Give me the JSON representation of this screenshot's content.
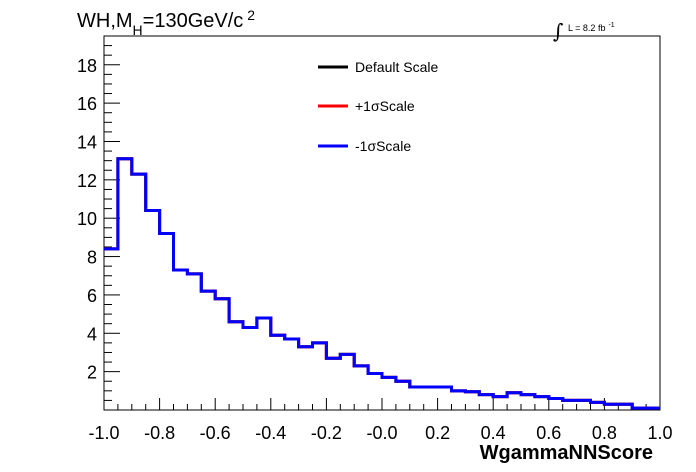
{
  "title": {
    "main": "WH,M",
    "sub": "H",
    "mass": "=130GeV/c",
    "sup": "2"
  },
  "lumi": {
    "integral": "∫",
    "text": "L = 8.2 fb",
    "sup": "-1"
  },
  "colors": {
    "default": "#000000",
    "plus": "#ff0000",
    "minus": "#0000ff"
  },
  "chart_data": {
    "type": "line",
    "xlabel": "WgammaNNScore",
    "ylabel": "",
    "xlim": [
      -1.0,
      1.0
    ],
    "ylim": [
      0,
      19.5
    ],
    "x_ticks": [
      "-1.0",
      "-0.8",
      "-0.6",
      "-0.4",
      "-0.2",
      "-0.0",
      "0.2",
      "0.4",
      "0.6",
      "0.8",
      "1.0"
    ],
    "y_ticks": [
      "2",
      "4",
      "6",
      "8",
      "10",
      "12",
      "14",
      "16",
      "18"
    ],
    "bin_edges": [
      -1.0,
      -0.95,
      -0.9,
      -0.85,
      -0.8,
      -0.75,
      -0.7,
      -0.65,
      -0.6,
      -0.55,
      -0.5,
      -0.45,
      -0.4,
      -0.35,
      -0.3,
      -0.25,
      -0.2,
      -0.15,
      -0.1,
      -0.05,
      0.0,
      0.05,
      0.1,
      0.15,
      0.2,
      0.25,
      0.3,
      0.35,
      0.4,
      0.45,
      0.5,
      0.55,
      0.6,
      0.65,
      0.7,
      0.75,
      0.8,
      0.85,
      0.9,
      0.95,
      1.0
    ],
    "series": [
      {
        "name": "Default Scale",
        "color": "#000000",
        "values": [
          8.4,
          13.1,
          12.3,
          10.4,
          9.2,
          7.3,
          7.1,
          6.2,
          5.8,
          4.6,
          4.3,
          4.8,
          3.9,
          3.7,
          3.3,
          3.5,
          2.7,
          2.9,
          2.3,
          1.9,
          1.7,
          1.5,
          1.2,
          1.2,
          1.2,
          1.0,
          0.95,
          0.8,
          0.7,
          0.9,
          0.8,
          0.7,
          0.6,
          0.5,
          0.5,
          0.4,
          0.3,
          0.3,
          0.1,
          0.1
        ]
      },
      {
        "name": "+1σScale",
        "color": "#ff0000",
        "values": [
          8.4,
          13.1,
          12.3,
          10.4,
          9.2,
          7.3,
          7.1,
          6.2,
          5.8,
          4.6,
          4.3,
          4.8,
          3.9,
          3.7,
          3.3,
          3.5,
          2.7,
          2.9,
          2.3,
          1.9,
          1.7,
          1.5,
          1.2,
          1.2,
          1.2,
          1.0,
          0.95,
          0.8,
          0.7,
          0.9,
          0.8,
          0.7,
          0.6,
          0.5,
          0.5,
          0.4,
          0.3,
          0.3,
          0.1,
          0.1
        ]
      },
      {
        "name": "-1σScale",
        "color": "#0000ff",
        "values": [
          8.4,
          13.1,
          12.3,
          10.4,
          9.2,
          7.3,
          7.1,
          6.2,
          5.8,
          4.6,
          4.3,
          4.8,
          3.9,
          3.7,
          3.3,
          3.5,
          2.7,
          2.9,
          2.3,
          1.9,
          1.7,
          1.5,
          1.2,
          1.2,
          1.2,
          1.0,
          0.95,
          0.8,
          0.7,
          0.9,
          0.8,
          0.7,
          0.6,
          0.5,
          0.5,
          0.4,
          0.3,
          0.3,
          0.1,
          0.1
        ]
      }
    ],
    "legend": {
      "position": "top-center",
      "entries": [
        "Default Scale",
        "+1σScale",
        "-1σScale"
      ]
    }
  }
}
